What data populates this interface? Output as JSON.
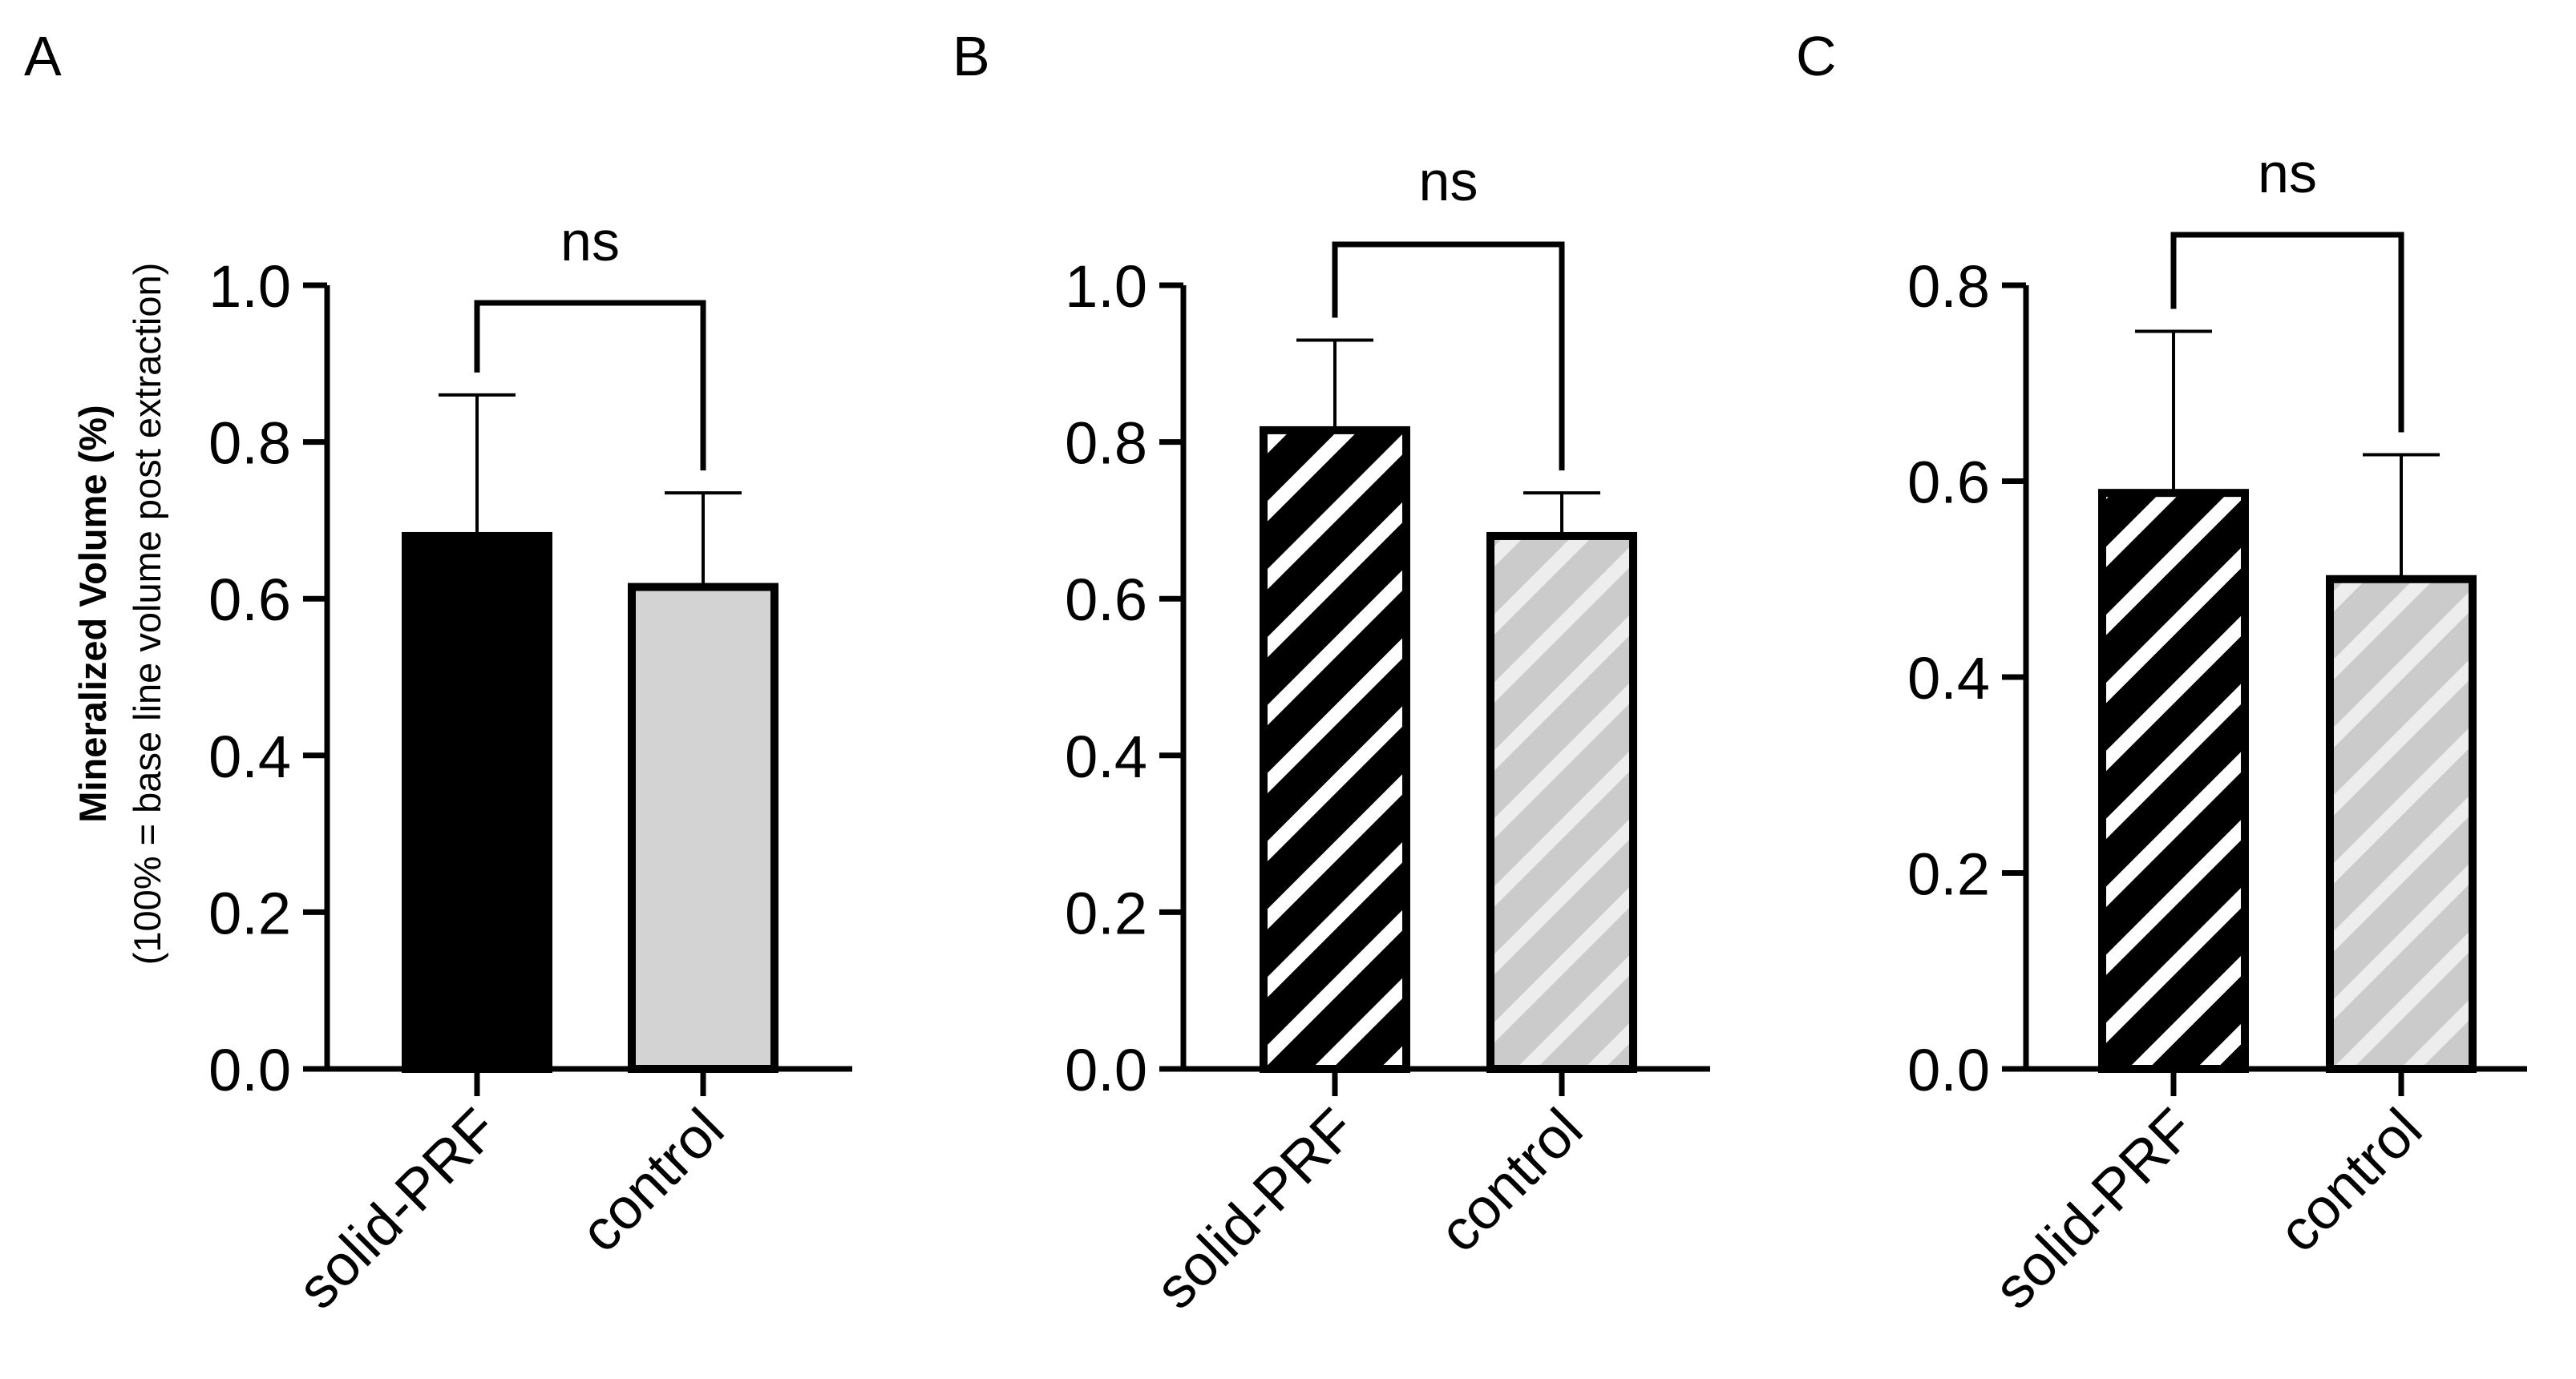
{
  "colors": {
    "ink": "#000000",
    "solid_fill": "#000000",
    "control_fill": "#d3d3d3",
    "hatch_light_on_black": "#ffffff",
    "hatch_light_on_gray": "#eeeeee"
  },
  "chart_data": [
    {
      "panel": "A",
      "type": "bar",
      "categories": [
        "solid-PRF",
        "control"
      ],
      "values": [
        0.68,
        0.615
      ],
      "errors": [
        0.18,
        0.12
      ],
      "fills": [
        "solid-black",
        "solid-gray"
      ],
      "ylabel": "Mineralized Volume (%)",
      "ylabel2": "(100% = base line volume post extraction)",
      "ylim": [
        0,
        1.0
      ],
      "yticks": [
        "0.0",
        "0.2",
        "0.4",
        "0.6",
        "0.8",
        "1.0"
      ],
      "significance": "ns"
    },
    {
      "panel": "B",
      "type": "bar",
      "categories": [
        "solid-PRF",
        "control"
      ],
      "values": [
        0.815,
        0.68
      ],
      "errors": [
        0.115,
        0.055
      ],
      "fills": [
        "hatch-black",
        "hatch-gray"
      ],
      "ylabel": "",
      "ylim": [
        0,
        1.0
      ],
      "yticks": [
        "0.0",
        "0.2",
        "0.4",
        "0.6",
        "0.8",
        "1.0"
      ],
      "significance": "ns"
    },
    {
      "panel": "C",
      "type": "bar",
      "categories": [
        "solid-PRF",
        "control"
      ],
      "values": [
        0.588,
        0.5
      ],
      "errors": [
        0.165,
        0.127
      ],
      "fills": [
        "hatch-black",
        "hatch-gray"
      ],
      "ylabel": "",
      "ylim": [
        0,
        0.8
      ],
      "yticks": [
        "0.0",
        "0.2",
        "0.4",
        "0.6",
        "0.8"
      ],
      "significance": "ns"
    }
  ]
}
